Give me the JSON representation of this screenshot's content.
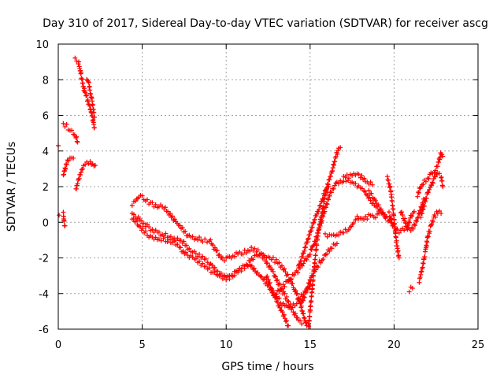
{
  "chart_data": {
    "type": "scatter",
    "title": "Day 310 of 2017, Sidereal Day-to-day VTEC variation (SDTVAR) for receiver ascg",
    "xlabel": "GPS time / hours",
    "ylabel": "SDTVAR / TECUs",
    "xlim": [
      0,
      25
    ],
    "ylim": [
      -6,
      10
    ],
    "xticks": [
      0,
      5,
      10,
      15,
      20,
      25
    ],
    "yticks": [
      -6,
      -4,
      -2,
      0,
      2,
      4,
      6,
      8,
      10
    ],
    "grid": true,
    "marker": "+",
    "color": "#ff0000",
    "tracks": [
      [
        [
          0.0,
          4.3
        ]
      ],
      [
        [
          0.05,
          0.4
        ]
      ],
      [
        [
          0.3,
          0.5
        ],
        [
          0.35,
          0.0
        ],
        [
          0.4,
          -0.2
        ]
      ],
      [
        [
          0.3,
          5.5
        ],
        [
          0.5,
          5.4
        ],
        [
          0.7,
          5.2
        ],
        [
          0.9,
          5.0
        ],
        [
          1.05,
          4.8
        ],
        [
          1.15,
          4.5
        ]
      ],
      [
        [
          0.3,
          2.6
        ],
        [
          0.4,
          3.0
        ],
        [
          0.5,
          3.3
        ],
        [
          0.6,
          3.5
        ],
        [
          0.8,
          3.7
        ],
        [
          0.9,
          3.6
        ]
      ],
      [
        [
          1.05,
          1.8
        ],
        [
          1.15,
          2.2
        ],
        [
          1.25,
          2.5
        ],
        [
          1.35,
          2.8
        ],
        [
          1.5,
          3.1
        ],
        [
          1.7,
          3.3
        ],
        [
          1.9,
          3.4
        ],
        [
          2.05,
          3.3
        ],
        [
          2.2,
          3.2
        ]
      ],
      [
        [
          1.0,
          9.2
        ],
        [
          1.2,
          9.0
        ],
        [
          1.3,
          8.6
        ],
        [
          1.4,
          8.1
        ],
        [
          1.5,
          7.6
        ],
        [
          1.6,
          7.2
        ],
        [
          1.7,
          7.0
        ],
        [
          1.8,
          6.7
        ],
        [
          1.9,
          6.4
        ],
        [
          2.0,
          6.0
        ],
        [
          2.1,
          5.6
        ],
        [
          2.15,
          5.3
        ]
      ],
      [
        [
          1.7,
          8.1
        ],
        [
          1.8,
          7.9
        ],
        [
          1.9,
          7.3
        ],
        [
          2.0,
          6.9
        ],
        [
          2.1,
          6.3
        ],
        [
          2.15,
          5.9
        ]
      ],
      [
        [
          4.4,
          1.0
        ],
        [
          4.6,
          1.2
        ],
        [
          4.8,
          1.5
        ],
        [
          5.0,
          1.4
        ],
        [
          5.3,
          1.2
        ],
        [
          5.6,
          1.0
        ],
        [
          6.0,
          0.9
        ],
        [
          6.3,
          0.8
        ],
        [
          6.6,
          0.5
        ],
        [
          7.0,
          0.0
        ],
        [
          7.4,
          -0.4
        ],
        [
          7.8,
          -0.8
        ],
        [
          8.2,
          -0.9
        ],
        [
          8.6,
          -1.0
        ],
        [
          9.0,
          -1.0
        ],
        [
          9.4,
          -1.6
        ],
        [
          9.8,
          -2.1
        ],
        [
          10.2,
          -2.0
        ],
        [
          10.6,
          -1.8
        ],
        [
          11.0,
          -1.7
        ],
        [
          11.4,
          -1.5
        ],
        [
          11.8,
          -1.6
        ],
        [
          12.2,
          -1.8
        ],
        [
          12.6,
          -2.0
        ],
        [
          13.0,
          -2.2
        ],
        [
          13.4,
          -2.6
        ],
        [
          13.8,
          -3.2
        ],
        [
          14.1,
          -3.8
        ],
        [
          14.4,
          -4.5
        ],
        [
          14.6,
          -5.2
        ],
        [
          14.8,
          -5.8
        ]
      ],
      [
        [
          4.4,
          0.5
        ],
        [
          4.7,
          0.3
        ],
        [
          5.0,
          0.0
        ],
        [
          5.4,
          -0.3
        ],
        [
          5.8,
          -0.5
        ],
        [
          6.2,
          -0.7
        ],
        [
          6.6,
          -0.8
        ],
        [
          7.0,
          -0.9
        ],
        [
          7.4,
          -1.1
        ],
        [
          7.8,
          -1.5
        ],
        [
          8.2,
          -1.8
        ],
        [
          8.6,
          -2.0
        ],
        [
          9.0,
          -2.3
        ],
        [
          9.4,
          -2.7
        ],
        [
          9.8,
          -3.0
        ],
        [
          10.2,
          -3.1
        ],
        [
          10.6,
          -2.8
        ],
        [
          11.0,
          -2.5
        ],
        [
          11.4,
          -2.3
        ],
        [
          11.8,
          -2.8
        ],
        [
          12.2,
          -3.2
        ],
        [
          12.6,
          -3.7
        ],
        [
          13.0,
          -4.2
        ],
        [
          13.4,
          -4.6
        ],
        [
          13.8,
          -4.8
        ],
        [
          14.2,
          -4.5
        ],
        [
          14.6,
          -4.0
        ],
        [
          15.0,
          -3.6
        ]
      ],
      [
        [
          4.4,
          0.2
        ],
        [
          4.8,
          -0.2
        ],
        [
          5.2,
          -0.6
        ],
        [
          5.6,
          -0.9
        ],
        [
          6.0,
          -1.0
        ],
        [
          6.4,
          -1.0
        ],
        [
          6.8,
          -1.1
        ],
        [
          7.2,
          -1.4
        ],
        [
          7.6,
          -1.8
        ],
        [
          8.0,
          -2.0
        ],
        [
          8.4,
          -2.3
        ],
        [
          8.8,
          -2.5
        ],
        [
          9.2,
          -2.8
        ],
        [
          9.6,
          -3.0
        ],
        [
          10.0,
          -3.2
        ],
        [
          10.4,
          -3.0
        ],
        [
          10.8,
          -2.7
        ],
        [
          11.2,
          -2.4
        ],
        [
          11.6,
          -2.0
        ],
        [
          12.0,
          -1.8
        ],
        [
          12.4,
          -2.2
        ],
        [
          12.8,
          -2.8
        ],
        [
          13.2,
          -3.6
        ],
        [
          13.6,
          -4.3
        ],
        [
          14.0,
          -5.0
        ],
        [
          14.3,
          -5.5
        ],
        [
          14.5,
          -5.7
        ]
      ],
      [
        [
          12.4,
          -3.0
        ],
        [
          12.8,
          -4.0
        ],
        [
          13.2,
          -4.8
        ],
        [
          13.5,
          -5.4
        ],
        [
          13.7,
          -5.8
        ]
      ],
      [
        [
          14.5,
          -4.5
        ],
        [
          14.8,
          -3.8
        ],
        [
          15.1,
          -3.0
        ],
        [
          15.4,
          -2.5
        ],
        [
          15.7,
          -2.1
        ],
        [
          16.0,
          -1.7
        ],
        [
          16.3,
          -1.4
        ],
        [
          16.6,
          -1.2
        ]
      ],
      [
        [
          13.0,
          -4.0
        ],
        [
          13.4,
          -3.6
        ],
        [
          13.8,
          -3.2
        ],
        [
          14.2,
          -2.8
        ],
        [
          14.6,
          -2.3
        ],
        [
          15.0,
          -1.7
        ],
        [
          15.4,
          -0.8
        ],
        [
          15.8,
          0.5
        ],
        [
          16.2,
          1.6
        ],
        [
          16.6,
          2.2
        ],
        [
          17.0,
          2.3
        ],
        [
          17.4,
          2.3
        ],
        [
          17.8,
          2.1
        ],
        [
          18.2,
          1.8
        ],
        [
          18.6,
          1.2
        ],
        [
          19.0,
          0.8
        ],
        [
          19.4,
          0.4
        ],
        [
          19.8,
          0.0
        ]
      ],
      [
        [
          14.3,
          -2.5
        ],
        [
          14.5,
          -2.0
        ],
        [
          14.8,
          -1.2
        ],
        [
          15.1,
          -0.3
        ],
        [
          15.4,
          0.5
        ],
        [
          15.7,
          1.2
        ],
        [
          16.0,
          2.0
        ],
        [
          16.3,
          2.8
        ],
        [
          16.5,
          3.6
        ],
        [
          16.7,
          4.1
        ],
        [
          16.8,
          4.2
        ]
      ],
      [
        [
          14.9,
          -5.9
        ],
        [
          15.0,
          -5.0
        ],
        [
          15.1,
          -4.0
        ],
        [
          15.2,
          -3.0
        ],
        [
          15.3,
          -2.0
        ],
        [
          15.4,
          -1.2
        ],
        [
          15.5,
          -0.5
        ],
        [
          15.7,
          0.5
        ],
        [
          15.9,
          1.5
        ],
        [
          16.1,
          2.0
        ]
      ],
      [
        [
          15.9,
          -0.7
        ],
        [
          16.4,
          -0.8
        ],
        [
          16.9,
          -0.6
        ],
        [
          17.3,
          -0.4
        ],
        [
          17.6,
          0.0
        ],
        [
          17.8,
          0.2
        ]
      ],
      [
        [
          17.0,
          2.5
        ],
        [
          17.4,
          2.6
        ],
        [
          17.8,
          2.8
        ],
        [
          18.0,
          2.6
        ],
        [
          18.3,
          2.3
        ],
        [
          18.7,
          2.1
        ]
      ],
      [
        [
          17.8,
          0.3
        ],
        [
          18.1,
          0.1
        ],
        [
          18.4,
          0.3
        ],
        [
          18.6,
          0.4
        ],
        [
          18.9,
          0.3
        ],
        [
          19.1,
          0.5
        ]
      ],
      [
        [
          18.5,
          1.7
        ],
        [
          18.8,
          1.4
        ],
        [
          19.0,
          1.0
        ],
        [
          19.3,
          0.6
        ],
        [
          19.5,
          0.3
        ]
      ],
      [
        [
          19.6,
          2.5
        ],
        [
          19.8,
          1.8
        ],
        [
          19.9,
          1.0
        ],
        [
          20.0,
          0.2
        ],
        [
          20.1,
          -0.8
        ],
        [
          20.2,
          -1.5
        ],
        [
          20.3,
          -2.0
        ]
      ],
      [
        [
          19.7,
          0.5
        ],
        [
          19.9,
          -0.1
        ],
        [
          20.1,
          -0.4
        ],
        [
          20.3,
          -0.5
        ],
        [
          20.5,
          -0.4
        ],
        [
          20.8,
          -0.2
        ],
        [
          21.0,
          0.3
        ],
        [
          21.2,
          0.6
        ]
      ],
      [
        [
          20.4,
          0.6
        ],
        [
          20.6,
          0.2
        ],
        [
          20.8,
          -0.3
        ],
        [
          21.0,
          -0.5
        ],
        [
          21.2,
          -0.2
        ],
        [
          21.4,
          0.2
        ],
        [
          21.6,
          0.8
        ],
        [
          21.8,
          1.3
        ]
      ],
      [
        [
          20.9,
          -3.8
        ],
        [
          21.1,
          -3.7
        ]
      ],
      [
        [
          21.5,
          -3.3
        ],
        [
          21.7,
          -2.5
        ],
        [
          21.9,
          -1.5
        ],
        [
          22.0,
          -0.8
        ],
        [
          22.2,
          -0.2
        ],
        [
          22.4,
          0.3
        ],
        [
          22.6,
          0.6
        ],
        [
          22.8,
          0.5
        ]
      ],
      [
        [
          21.4,
          1.5
        ],
        [
          21.6,
          2.0
        ],
        [
          21.8,
          2.3
        ],
        [
          22.0,
          2.4
        ],
        [
          22.2,
          2.7
        ],
        [
          22.4,
          2.9
        ],
        [
          22.6,
          3.2
        ],
        [
          22.8,
          3.9
        ],
        [
          22.9,
          3.7
        ]
      ],
      [
        [
          21.6,
          0.4
        ],
        [
          21.8,
          1.0
        ],
        [
          22.0,
          1.6
        ],
        [
          22.2,
          2.0
        ],
        [
          22.4,
          2.5
        ],
        [
          22.6,
          2.8
        ],
        [
          22.8,
          2.6
        ],
        [
          22.9,
          2.0
        ]
      ]
    ]
  }
}
